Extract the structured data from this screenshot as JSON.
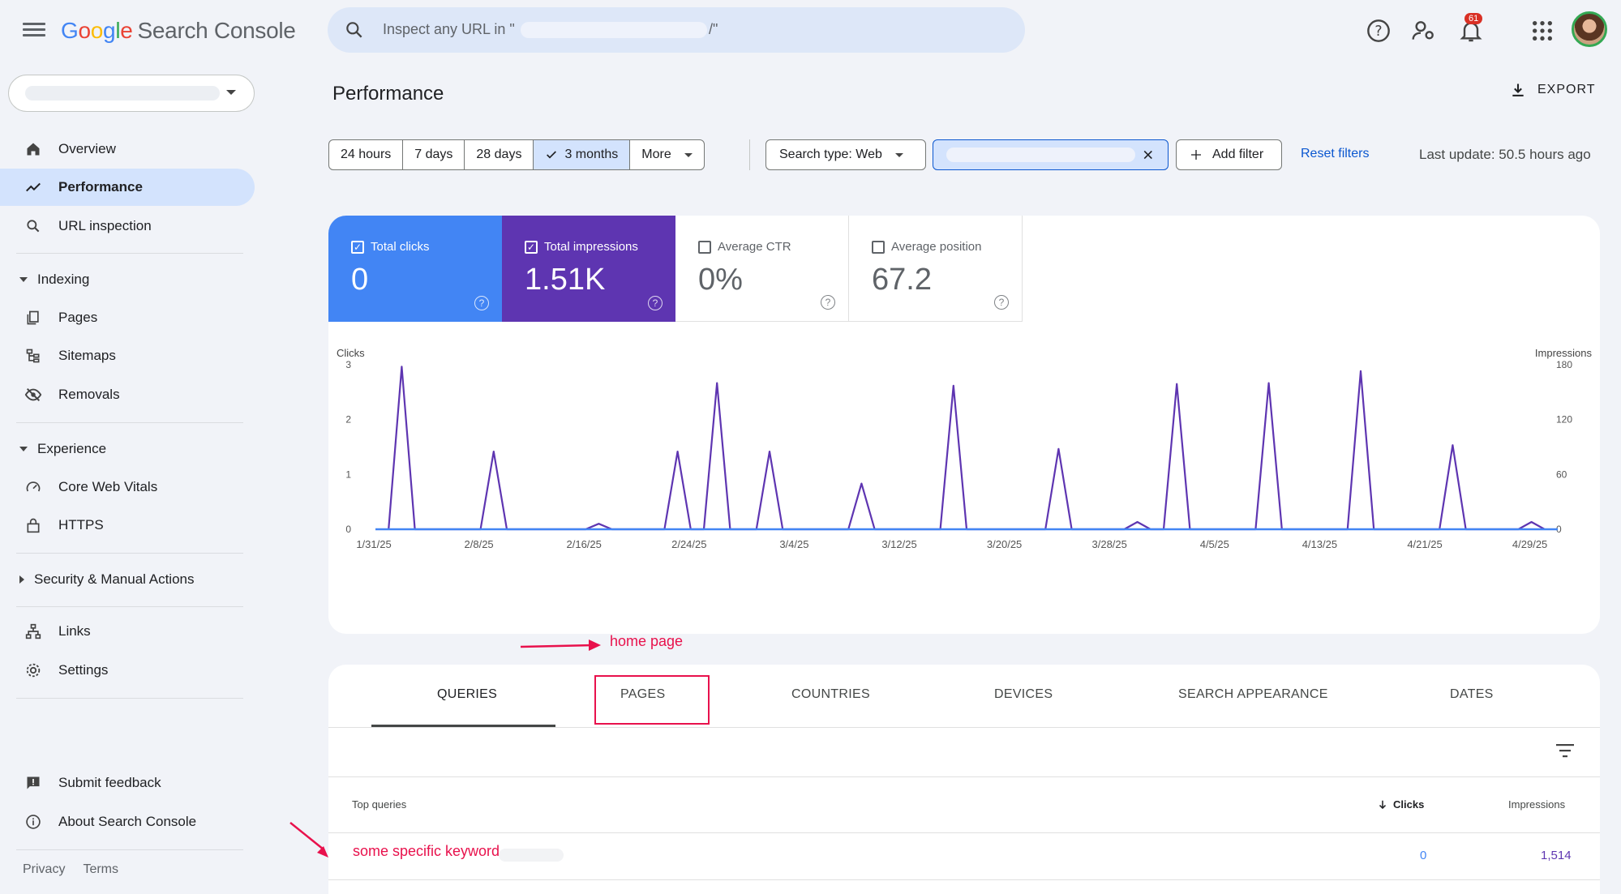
{
  "header": {
    "brand": [
      "G",
      "o",
      "o",
      "g",
      "l",
      "e"
    ],
    "product": "Search Console",
    "search_placeholder": "Inspect any URL in \"",
    "search_suffix": "/\"",
    "notification_count": "61"
  },
  "sidebar": {
    "items": [
      {
        "label": "Overview",
        "icon": "home-icon"
      },
      {
        "label": "Performance",
        "icon": "trending-up-icon",
        "active": true
      },
      {
        "label": "URL inspection",
        "icon": "search-icon"
      }
    ],
    "sections": [
      {
        "label": "Indexing",
        "expanded": true,
        "items": [
          {
            "label": "Pages",
            "icon": "pages-icon"
          },
          {
            "label": "Sitemaps",
            "icon": "sitemap-icon"
          },
          {
            "label": "Removals",
            "icon": "eye-off-icon"
          }
        ]
      },
      {
        "label": "Experience",
        "expanded": true,
        "items": [
          {
            "label": "Core Web Vitals",
            "icon": "speed-icon"
          },
          {
            "label": "HTTPS",
            "icon": "lock-icon"
          }
        ]
      },
      {
        "label": "Security & Manual Actions",
        "expanded": false,
        "items": []
      }
    ],
    "bottom_items": [
      {
        "label": "Links",
        "icon": "links-icon"
      },
      {
        "label": "Settings",
        "icon": "gear-icon"
      }
    ],
    "feedback": "Submit feedback",
    "about": "About Search Console",
    "footer": [
      "Privacy",
      "Terms"
    ]
  },
  "main": {
    "title": "Performance",
    "export": "EXPORT",
    "date_ranges": [
      "24 hours",
      "7 days",
      "28 days",
      "3 months",
      "More"
    ],
    "selected_range": "3 months",
    "search_type": "Search type: Web",
    "add_filter": "Add filter",
    "reset_filters": "Reset filters",
    "last_update": "Last update: 50.5 hours ago"
  },
  "metrics": [
    {
      "label": "Total clicks",
      "value": "0",
      "checked": true,
      "color": "#4285f4"
    },
    {
      "label": "Total impressions",
      "value": "1.51K",
      "checked": true,
      "color": "#5e35b1"
    },
    {
      "label": "Average CTR",
      "value": "0%",
      "checked": false
    },
    {
      "label": "Average position",
      "value": "67.2",
      "checked": false
    }
  ],
  "chart_data": {
    "type": "line",
    "ylabel_left": "Clicks",
    "ylabel_right": "Impressions",
    "y_left_ticks": [
      "3",
      "2",
      "1",
      "0"
    ],
    "y_right_ticks": [
      "180",
      "120",
      "60",
      "0"
    ],
    "ylim_left": [
      0,
      3
    ],
    "ylim_right": [
      0,
      180
    ],
    "x_tick_labels": [
      "1/31/25",
      "2/8/25",
      "2/16/25",
      "2/24/25",
      "3/4/25",
      "3/12/25",
      "3/20/25",
      "3/28/25",
      "4/5/25",
      "4/13/25",
      "4/21/25",
      "4/29/25"
    ],
    "x_tick_days": [
      0,
      8,
      16,
      24,
      32,
      40,
      48,
      56,
      64,
      72,
      80,
      88
    ],
    "x_range_days": [
      0,
      90
    ],
    "series": [
      {
        "name": "Clicks",
        "axis": "left",
        "color": "#4285f4",
        "values": [
          [
            0,
            0
          ],
          [
            90,
            0
          ]
        ]
      },
      {
        "name": "Impressions",
        "axis": "right",
        "color": "#5e35b1",
        "points": [
          [
            1,
            0
          ],
          [
            2,
            178
          ],
          [
            3,
            0
          ],
          [
            4,
            0
          ],
          [
            8,
            0
          ],
          [
            9,
            85
          ],
          [
            10,
            0
          ],
          [
            16,
            0
          ],
          [
            17,
            6
          ],
          [
            18,
            0
          ],
          [
            22,
            0
          ],
          [
            23,
            85
          ],
          [
            24,
            0
          ],
          [
            25,
            0
          ],
          [
            26,
            160
          ],
          [
            27,
            0
          ],
          [
            29,
            0
          ],
          [
            30,
            85
          ],
          [
            31,
            0
          ],
          [
            36,
            0
          ],
          [
            37,
            50
          ],
          [
            38,
            0
          ],
          [
            43,
            0
          ],
          [
            44,
            157
          ],
          [
            45,
            0
          ],
          [
            51,
            0
          ],
          [
            52,
            88
          ],
          [
            53,
            0
          ],
          [
            57,
            0
          ],
          [
            58,
            8
          ],
          [
            59,
            0
          ],
          [
            60,
            0
          ],
          [
            61,
            159
          ],
          [
            62,
            0
          ],
          [
            67,
            0
          ],
          [
            68,
            160
          ],
          [
            69,
            0
          ],
          [
            74,
            0
          ],
          [
            75,
            173
          ],
          [
            76,
            0
          ],
          [
            81,
            0
          ],
          [
            82,
            92
          ],
          [
            83,
            0
          ],
          [
            87,
            0
          ],
          [
            88,
            8
          ],
          [
            89,
            0
          ]
        ]
      }
    ]
  },
  "annotations": {
    "arrow_label": "home page"
  },
  "tabs": [
    "QUERIES",
    "PAGES",
    "COUNTRIES",
    "DEVICES",
    "SEARCH APPEARANCE",
    "DATES"
  ],
  "active_tab": "QUERIES",
  "table": {
    "columns": [
      "Top queries",
      "Clicks",
      "Impressions"
    ],
    "rows": [
      {
        "query": "some specific keyword",
        "clicks": "0",
        "impressions": "1,514"
      }
    ]
  }
}
